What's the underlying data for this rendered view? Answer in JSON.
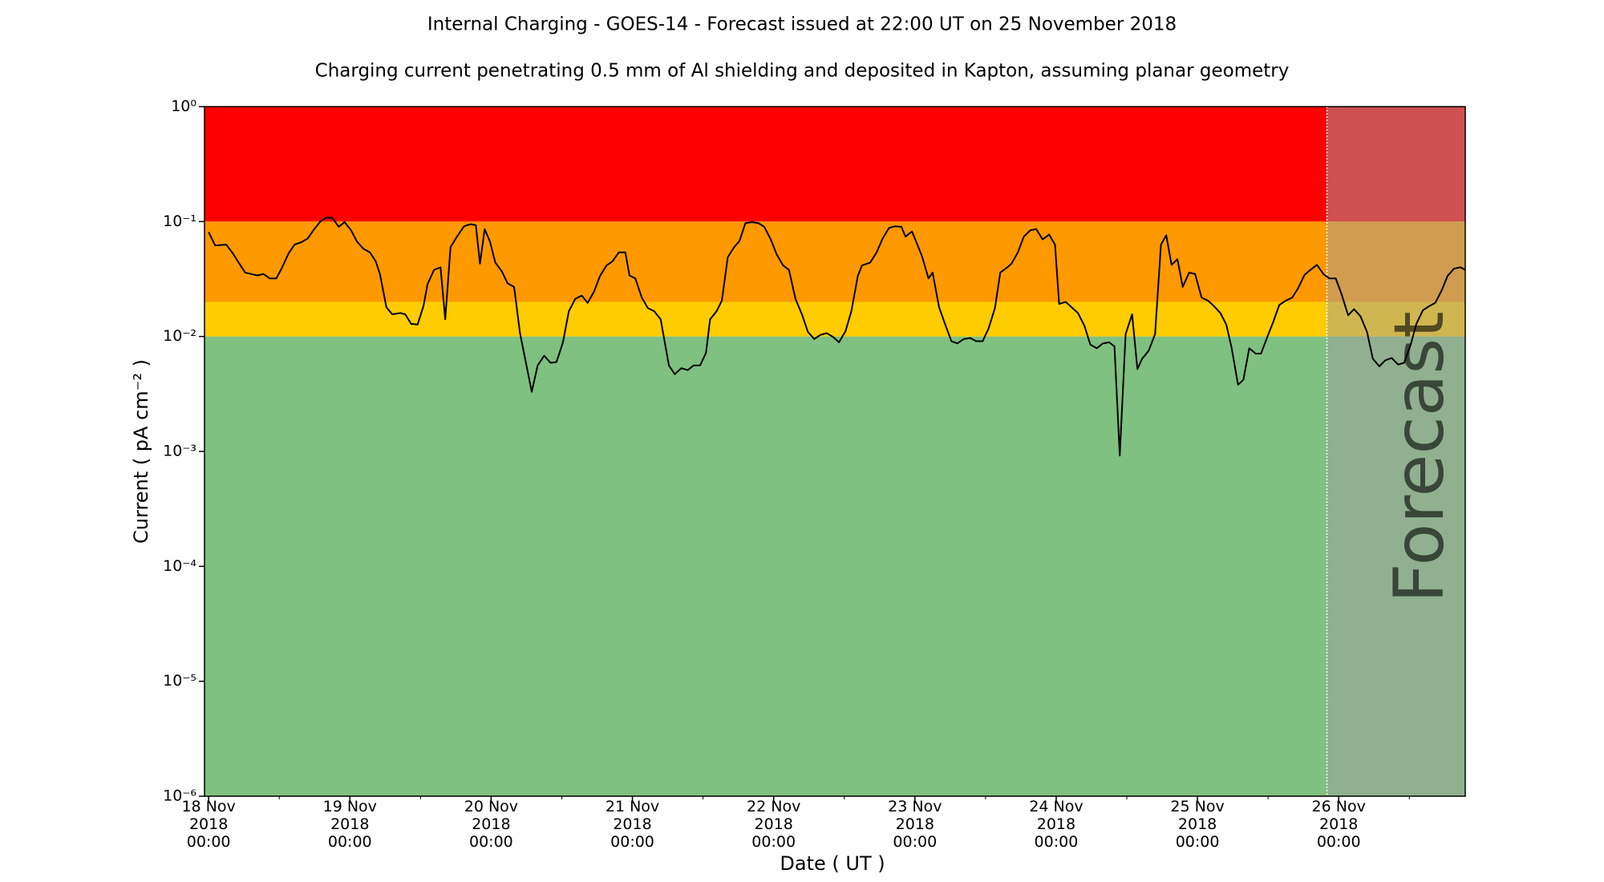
{
  "chart_data": {
    "type": "line",
    "title": "Internal Charging - GOES-14 - Forecast issued at 22:00 UT on 25 November 2018",
    "subtitle": "Charging current penetrating 0.5 mm of Al shielding and deposited in Kapton, assuming planar geometry",
    "x_label": "Date ( UT )",
    "y_label": "Current ( pA cm⁻² )",
    "log_y": true,
    "xlim": [
      -0.7,
      213.5
    ],
    "ylim": [
      1e-06,
      1
    ],
    "xticks": [
      {
        "value": 0,
        "label": "18 Nov\n2018\n00:00"
      },
      {
        "value": 24,
        "label": "19 Nov\n2018\n00:00"
      },
      {
        "value": 48,
        "label": "20 Nov\n2018\n00:00"
      },
      {
        "value": 72,
        "label": "21 Nov\n2018\n00:00"
      },
      {
        "value": 96,
        "label": "22 Nov\n2018\n00:00"
      },
      {
        "value": 120,
        "label": "23 Nov\n2018\n00:00"
      },
      {
        "value": 144,
        "label": "24 Nov\n2018\n00:00"
      },
      {
        "value": 168,
        "label": "25 Nov\n2018\n00:00"
      },
      {
        "value": 192,
        "label": "26 Nov\n2018\n00:00"
      }
    ],
    "xminorticks": [
      12,
      36,
      60,
      84,
      108,
      132,
      156,
      180,
      204
    ],
    "yticks": [
      {
        "value": 1e-06,
        "label": "10⁻⁶"
      },
      {
        "value": 1e-05,
        "label": "10⁻⁵"
      },
      {
        "value": 0.0001,
        "label": "10⁻⁴"
      },
      {
        "value": 0.001,
        "label": "10⁻³"
      },
      {
        "value": 0.01,
        "label": "10⁻²"
      },
      {
        "value": 0.1,
        "label": "10⁻¹"
      },
      {
        "value": 1,
        "label": "10⁰"
      }
    ],
    "bands": [
      {
        "from": 0.1,
        "to": 1,
        "color": "#ff0000"
      },
      {
        "from": 0.02,
        "to": 0.1,
        "color": "#ff9900"
      },
      {
        "from": 0.01,
        "to": 0.02,
        "color": "#ffcc00"
      },
      {
        "from": 1e-06,
        "to": 0.01,
        "color": "#80c080"
      }
    ],
    "forecast": {
      "start": 190,
      "label": "Forecast",
      "color": "#a0a0a0"
    },
    "x": [
      0,
      1.1,
      3.0,
      4.1,
      5.1,
      6.2,
      7.2,
      8.3,
      9.3,
      10.4,
      11.5,
      12.5,
      13.6,
      14.6,
      15.7,
      16.8,
      17.8,
      18.9,
      19.9,
      21.0,
      22.1,
      23.1,
      24.2,
      25.2,
      26.3,
      27.4,
      28.4,
      29.1,
      30.2,
      31.2,
      32.6,
      33.4,
      34.4,
      35.5,
      36.5,
      37.2,
      38.3,
      39.4,
      40.2,
      41.1,
      42.2,
      43.4,
      44.5,
      45.4,
      46.1,
      46.9,
      47.8,
      48.7,
      49.8,
      50.8,
      51.9,
      52.9,
      53.8,
      54.9,
      55.9,
      57.0,
      58.1,
      59.1,
      60.2,
      61.2,
      62.3,
      63.4,
      64.4,
      65.5,
      66.5,
      67.6,
      68.6,
      69.7,
      70.8,
      71.5,
      72.5,
      73.6,
      74.6,
      75.7,
      76.8,
      78.2,
      79.2,
      80.3,
      81.4,
      82.4,
      83.5,
      84.5,
      85.2,
      86.3,
      87.2,
      88.2,
      89.3,
      90.2,
      91.2,
      92.3,
      93.4,
      94.4,
      95.5,
      96.5,
      97.6,
      98.6,
      99.7,
      100.8,
      101.8,
      102.9,
      103.9,
      105.0,
      106.1,
      107.1,
      108.2,
      109.2,
      110.3,
      111.0,
      112.4,
      113.5,
      114.5,
      115.6,
      116.6,
      117.7,
      118.4,
      119.5,
      120.2,
      121.2,
      122.3,
      123.0,
      124.1,
      125.1,
      126.2,
      127.2,
      128.3,
      129.4,
      130.4,
      131.5,
      132.5,
      133.6,
      134.5,
      135.7,
      136.4,
      137.5,
      138.5,
      139.6,
      140.6,
      141.7,
      142.8,
      143.8,
      144.5,
      145.6,
      146.6,
      147.7,
      148.8,
      149.8,
      150.9,
      151.9,
      153.0,
      153.9,
      154.8,
      155.8,
      156.9,
      157.8,
      158.6,
      159.7,
      160.8,
      161.8,
      162.7,
      163.6,
      164.6,
      165.5,
      166.6,
      167.6,
      168.7,
      169.8,
      170.8,
      171.9,
      172.9,
      173.8,
      174.9,
      175.8,
      176.8,
      177.9,
      178.8,
      179.8,
      180.9,
      181.9,
      183.0,
      184.1,
      185.1,
      186.2,
      187.2,
      188.3,
      189.4,
      190.4,
      191.5,
      192.5,
      193.6,
      194.6,
      195.7,
      196.8,
      197.8,
      198.9,
      199.9,
      201.0,
      202.1,
      203.1,
      204.2,
      205.2,
      206.3,
      207.4,
      208.4,
      209.5,
      210.5,
      211.6,
      212.7,
      213.5
    ],
    "series": [
      {
        "color": "#000000",
        "values": [
          0.081,
          0.062,
          0.063,
          0.053,
          0.044,
          0.036,
          0.035,
          0.034,
          0.035,
          0.032,
          0.032,
          0.04,
          0.053,
          0.063,
          0.066,
          0.071,
          0.084,
          0.099,
          0.108,
          0.108,
          0.09,
          0.099,
          0.084,
          0.067,
          0.058,
          0.054,
          0.045,
          0.035,
          0.018,
          0.0156,
          0.016,
          0.0156,
          0.0129,
          0.0127,
          0.0184,
          0.0286,
          0.038,
          0.04,
          0.0141,
          0.06,
          0.074,
          0.091,
          0.095,
          0.093,
          0.043,
          0.086,
          0.067,
          0.044,
          0.037,
          0.029,
          0.027,
          0.0107,
          0.0063,
          0.0033,
          0.0056,
          0.0068,
          0.0059,
          0.006,
          0.0089,
          0.0166,
          0.0213,
          0.0227,
          0.0196,
          0.0247,
          0.0337,
          0.0415,
          0.045,
          0.054,
          0.054,
          0.034,
          0.032,
          0.0218,
          0.0177,
          0.0166,
          0.0141,
          0.0056,
          0.0047,
          0.0053,
          0.0051,
          0.0056,
          0.0056,
          0.0072,
          0.0141,
          0.0166,
          0.0205,
          0.049,
          0.06,
          0.068,
          0.097,
          0.099,
          0.097,
          0.09,
          0.07,
          0.052,
          0.0415,
          0.038,
          0.0213,
          0.0156,
          0.011,
          0.0095,
          0.0103,
          0.0107,
          0.0099,
          0.0089,
          0.0111,
          0.0166,
          0.0337,
          0.0415,
          0.044,
          0.054,
          0.071,
          0.088,
          0.091,
          0.09,
          0.074,
          0.082,
          0.067,
          0.05,
          0.032,
          0.036,
          0.018,
          0.0129,
          0.0091,
          0.0087,
          0.0095,
          0.0097,
          0.0091,
          0.0091,
          0.0117,
          0.0177,
          0.036,
          0.04,
          0.043,
          0.054,
          0.074,
          0.084,
          0.086,
          0.07,
          0.077,
          0.063,
          0.0192,
          0.02,
          0.018,
          0.016,
          0.0124,
          0.0085,
          0.0079,
          0.0087,
          0.0089,
          0.0082,
          0.00092,
          0.0105,
          0.0156,
          0.0052,
          0.0064,
          0.0075,
          0.0105,
          0.063,
          0.076,
          0.042,
          0.047,
          0.027,
          0.036,
          0.035,
          0.0218,
          0.0205,
          0.0184,
          0.016,
          0.0127,
          0.008,
          0.0038,
          0.0042,
          0.0079,
          0.0071,
          0.0071,
          0.0097,
          0.0135,
          0.0188,
          0.0205,
          0.0218,
          0.0263,
          0.0344,
          0.038,
          0.042,
          0.035,
          0.032,
          0.032,
          0.0232,
          0.0153,
          0.0173,
          0.015,
          0.011,
          0.0064,
          0.0055,
          0.0062,
          0.0065,
          0.0057,
          0.0059,
          0.0084,
          0.0129,
          0.0169,
          0.0184,
          0.0196,
          0.0252,
          0.0337,
          0.039,
          0.04,
          0.038
        ]
      }
    ]
  }
}
